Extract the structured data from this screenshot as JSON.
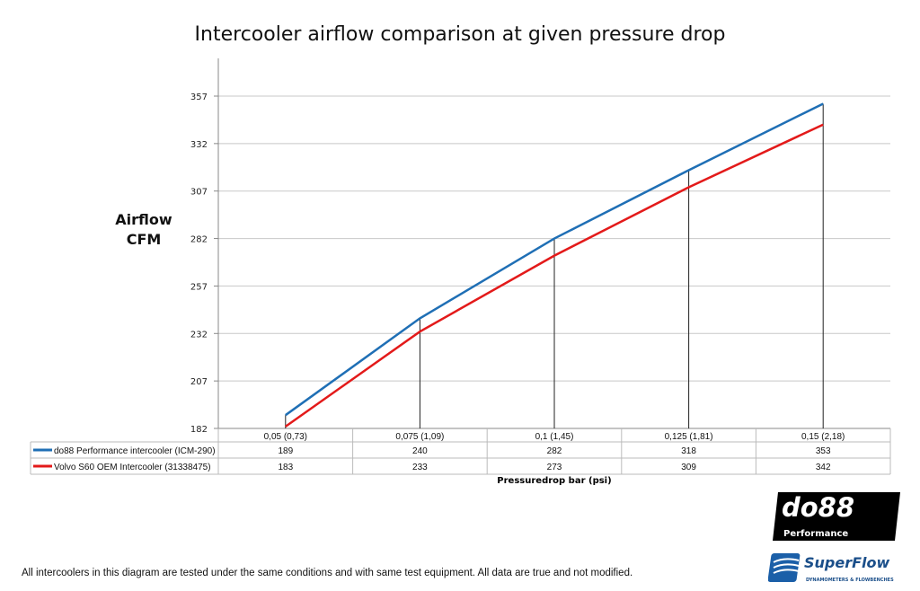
{
  "chart_data": {
    "type": "line",
    "title": "Intercooler airflow comparison at given pressure drop",
    "ylabel": "Airflow CFM",
    "ylabel_lines": [
      "Airflow",
      "CFM"
    ],
    "xlabel": "Pressuredrop bar (psi)",
    "ylim": [
      182,
      357
    ],
    "yticks": [
      182,
      207,
      232,
      257,
      282,
      307,
      332,
      357
    ],
    "grid": true,
    "legend": "data-table-bottom",
    "categories": [
      "0,05 (0,73)",
      "0,075 (1,09)",
      "0,1 (1,45)",
      "0,125 (1,81)",
      "0,15 (2,18)"
    ],
    "series": [
      {
        "name": "do88 Performance intercooler (ICM-290)",
        "color": "#1f6fb5",
        "values": [
          189,
          240,
          282,
          318,
          353
        ]
      },
      {
        "name": "Volvo S60 OEM Intercooler (31338475)",
        "color": "#e31a1a",
        "values": [
          183,
          233,
          273,
          309,
          342
        ]
      }
    ]
  },
  "footnote": "All intercoolers in this diagram are tested under the same conditions and with same test equipment. All data are true and not modified.",
  "logos": {
    "do88": {
      "main": "do88",
      "sub": "Performance"
    },
    "superflow": {
      "main": "SuperFlow",
      "sub": "DYNAMOMETERS & FLOWBENCHES"
    }
  }
}
